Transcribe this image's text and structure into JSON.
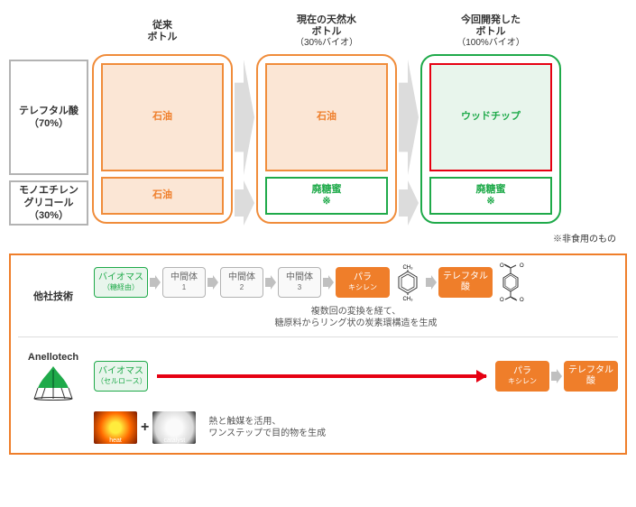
{
  "colors": {
    "gray": "#b3b3b3",
    "gray_light": "#f2f2f2",
    "orange": "#f08c3a",
    "orange_fill": "#fbe6d5",
    "orange_strong": "#ef7e2a",
    "green": "#1faa4a",
    "green_fill": "#e8f5ec",
    "red": "#e60012",
    "text": "#333333",
    "arrow_gray": "#dcdcdc",
    "arrow_mid": "#c0c0c0"
  },
  "left_labels": {
    "tpa": {
      "name": "テレフタル酸",
      "pct": "（70%）",
      "border": "#b3b3b3",
      "bg": "#ffffff"
    },
    "meg": {
      "name": "モノエチレン\nグリコール",
      "pct": "（30%）",
      "border": "#b3b3b3",
      "bg": "#ffffff"
    }
  },
  "columns": [
    {
      "title": "従来",
      "title2": "ボトル",
      "sub": "",
      "border": "#f08c3a",
      "materials": [
        {
          "text": "石油",
          "border": "#f08c3a",
          "bg": "#fbe6d5",
          "color": "#ef7e2a",
          "h": "tall"
        },
        {
          "text": "石油",
          "border": "#f08c3a",
          "bg": "#fbe6d5",
          "color": "#ef7e2a",
          "h": "short"
        }
      ]
    },
    {
      "title": "現在の天然水",
      "title2": "ボトル",
      "sub": "（30%バイオ）",
      "border": "#f08c3a",
      "materials": [
        {
          "text": "石油",
          "border": "#f08c3a",
          "bg": "#fbe6d5",
          "color": "#ef7e2a",
          "h": "tall"
        },
        {
          "text": "廃糖蜜\n※",
          "border": "#1faa4a",
          "bg": "#ffffff",
          "color": "#1faa4a",
          "h": "short"
        }
      ]
    },
    {
      "title": "今回開発した",
      "title2": "ボトル",
      "sub": "（100%バイオ）",
      "border": "#1faa4a",
      "materials": [
        {
          "text": "ウッドチップ",
          "border": "#e60012",
          "bg": "#e8f5ec",
          "color": "#1faa4a",
          "h": "tall"
        },
        {
          "text": "廃糖蜜\n※",
          "border": "#1faa4a",
          "bg": "#ffffff",
          "color": "#1faa4a",
          "h": "short"
        }
      ]
    }
  ],
  "arrows_between": {
    "fill": "#dcdcdc"
  },
  "footnote": "※非食用のもの",
  "bottom": {
    "panel_border": "#ef7e2a",
    "row1": {
      "label": "他社技術",
      "boxes": [
        {
          "t1": "バイオマス",
          "t2": "（糖経由）",
          "border": "#1faa4a",
          "bg": "#e8f5ec",
          "color": "#1faa4a",
          "w": "w64"
        },
        {
          "t1": "中間体",
          "t2": "1",
          "border": "#b3b3b3",
          "bg": "#f9f9f9",
          "color": "#666666",
          "w": "w54"
        },
        {
          "t1": "中間体",
          "t2": "2",
          "border": "#b3b3b3",
          "bg": "#f9f9f9",
          "color": "#666666",
          "w": "w54"
        },
        {
          "t1": "中間体",
          "t2": "3",
          "border": "#b3b3b3",
          "bg": "#f9f9f9",
          "color": "#666666",
          "w": "w54"
        },
        {
          "t1": "パラ",
          "t2": "キシレン",
          "border": "#ef7e2a",
          "bg": "#ef7e2a",
          "color": "#ffffff",
          "w": "w64"
        },
        {
          "t1": "テレフタル酸",
          "t2": "",
          "border": "#ef7e2a",
          "bg": "#ef7e2a",
          "color": "#ffffff",
          "w": "w64"
        }
      ],
      "caption1": "複数回の変換を経て、",
      "caption2": "糖原料からリング状の炭素環構造を生成",
      "mol1_labels": {
        "top": "CH₃",
        "bottom": "CH₃"
      }
    },
    "row2": {
      "brand": "Anellotech",
      "start": {
        "t1": "バイオマス",
        "t2": "（セルロース）",
        "border": "#1faa4a",
        "bg": "#e8f5ec",
        "color": "#1faa4a",
        "w": "w64"
      },
      "end_boxes": [
        {
          "t1": "パラ",
          "t2": "キシレン",
          "border": "#ef7e2a",
          "bg": "#ef7e2a",
          "color": "#ffffff",
          "w": "w64"
        },
        {
          "t1": "テレフタル酸",
          "t2": "",
          "border": "#ef7e2a",
          "bg": "#ef7e2a",
          "color": "#ffffff",
          "w": "w64"
        }
      ],
      "heat_label": "heat",
      "catalyst_label": "catalyst",
      "caption1": "熱と触媒を活用、",
      "caption2": "ワンステップで目的物を生成"
    }
  }
}
